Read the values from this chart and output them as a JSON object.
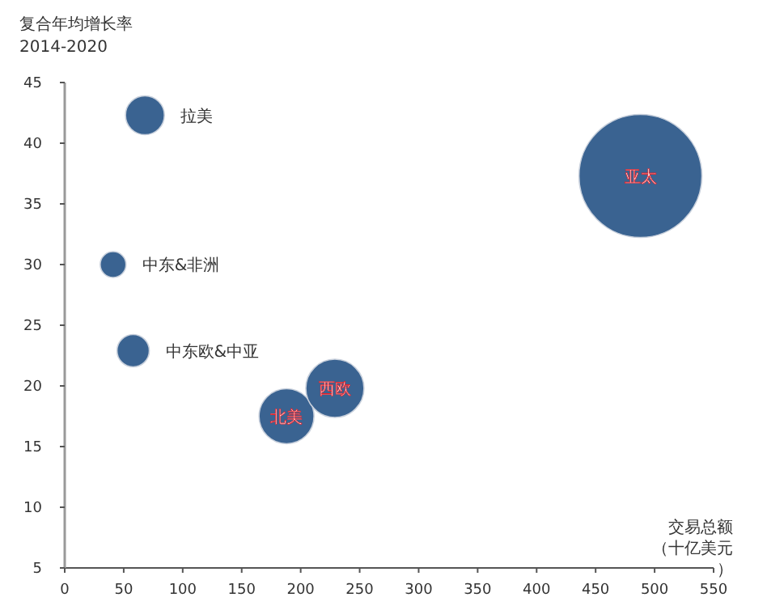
{
  "chart_data": {
    "type": "bubble",
    "ylabel": "复合年均增长率\n2014-2020",
    "xlabel": "交易总额（十亿美元）",
    "xlim": [
      0,
      550
    ],
    "xticks": [
      0,
      50,
      100,
      150,
      200,
      250,
      300,
      350,
      400,
      450,
      500,
      550
    ],
    "ylim": [
      5,
      45
    ],
    "yticks": [
      5,
      10,
      15,
      20,
      25,
      30,
      35,
      40,
      45
    ],
    "grid": false,
    "series": [
      {
        "name": "拉美",
        "color": "#3a6391",
        "x": [
          68
        ],
        "values": [
          42.3
        ],
        "sizes": [
          0.1
        ]
      },
      {
        "name": "中东&非洲",
        "color": "#3a6391",
        "x": [
          41
        ],
        "values": [
          30
        ],
        "sizes": [
          0.044
        ]
      },
      {
        "name": "中东欧&中亚",
        "color": "#3a6391",
        "x": [
          58
        ],
        "values": [
          22.9
        ],
        "sizes": [
          0.069
        ]
      },
      {
        "name": "北美",
        "color": "#3a6391",
        "x": [
          188
        ],
        "values": [
          17.5
        ],
        "sizes": [
          0.2
        ]
      },
      {
        "name": "西欧",
        "color": "#3a6391",
        "x": [
          229
        ],
        "values": [
          19.8
        ],
        "sizes": [
          0.224
        ]
      },
      {
        "name": "亚太",
        "color": "#3a6391",
        "x": [
          488
        ],
        "values": [
          37.3
        ],
        "sizes": [
          1
        ]
      }
    ]
  }
}
